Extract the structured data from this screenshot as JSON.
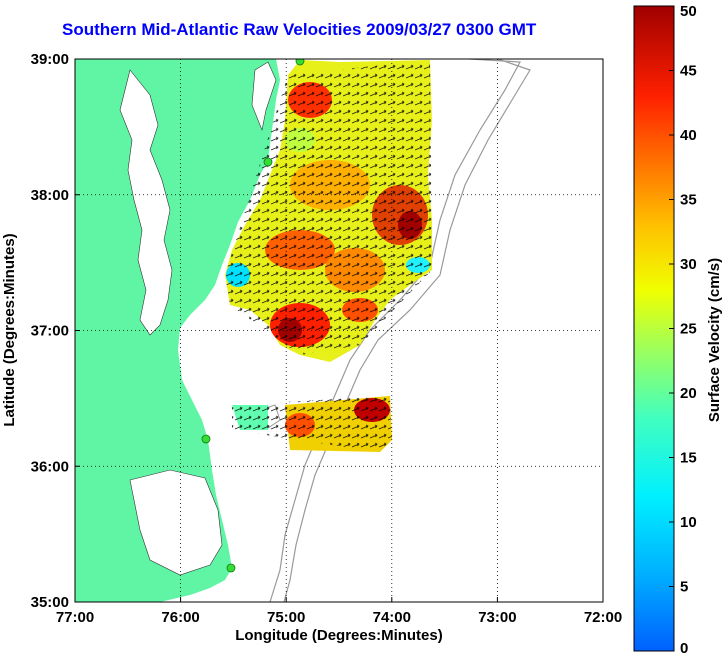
{
  "title": "Southern Mid-Atlantic Raw Velocities 2009/03/27 0300 GMT",
  "x_axis": {
    "label": "Longitude (Degrees:Minutes)",
    "ticks": [
      "77:00",
      "76:00",
      "75:00",
      "74:00",
      "73:00",
      "72:00"
    ]
  },
  "y_axis": {
    "label": "Latitude (Degrees:Minutes)",
    "ticks": [
      "39:00",
      "38:00",
      "37:00",
      "36:00",
      "35:00"
    ]
  },
  "colorbar": {
    "label": "Surface Velocity (cm/s)",
    "ticks": [
      "50",
      "45",
      "40",
      "35",
      "30",
      "25",
      "20",
      "15",
      "10",
      "5",
      "0"
    ],
    "min": 0,
    "max": 50,
    "colormap": "jet"
  },
  "colors": {
    "land": "#5ff5a5",
    "water": "#ffffff",
    "title": "#0000ff",
    "bathymetry_contour": "#999999",
    "arrows": "#000000",
    "station_marker": "#33dd33"
  },
  "map_extent": {
    "lon_min": -77.0,
    "lon_max": -72.0,
    "lat_min": 35.0,
    "lat_max": 39.0
  },
  "grid": "dotted"
}
